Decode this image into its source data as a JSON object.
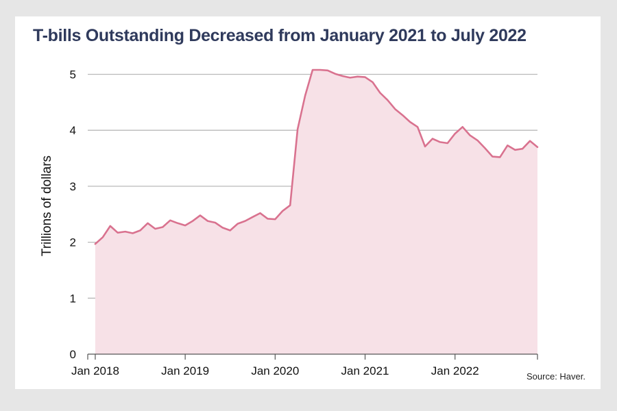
{
  "chart_data": {
    "type": "area",
    "title": "T-bills Outstanding Decreased from January 2021 to July 2022",
    "ylabel": "Trillions of dollars",
    "xlabel": "",
    "source": "Source: Haver.",
    "ylim": [
      0,
      5.3
    ],
    "xlim": [
      "2017-12",
      "2022-12"
    ],
    "yticks": [
      0,
      1,
      2,
      3,
      4,
      5
    ],
    "xticks": [
      {
        "date": "2018-01",
        "label": "Jan 2018"
      },
      {
        "date": "2019-01",
        "label": "Jan 2019"
      },
      {
        "date": "2020-01",
        "label": "Jan 2020"
      },
      {
        "date": "2021-01",
        "label": "Jan 2021"
      },
      {
        "date": "2022-01",
        "label": "Jan 2022"
      }
    ],
    "grid": true,
    "line_color": "#d9728f",
    "fill_color": "#f7e1e7",
    "series": [
      {
        "x": [
          "2018-01",
          "2018-02",
          "2018-03",
          "2018-04",
          "2018-05",
          "2018-06",
          "2018-07",
          "2018-08",
          "2018-09",
          "2018-10",
          "2018-11",
          "2018-12",
          "2019-01",
          "2019-02",
          "2019-03",
          "2019-04",
          "2019-05",
          "2019-06",
          "2019-07",
          "2019-08",
          "2019-09",
          "2019-10",
          "2019-11",
          "2019-12",
          "2020-01",
          "2020-02",
          "2020-03",
          "2020-04",
          "2020-05",
          "2020-06",
          "2020-07",
          "2020-08",
          "2020-09",
          "2020-10",
          "2020-11",
          "2020-12",
          "2021-01",
          "2021-02",
          "2021-03",
          "2021-04",
          "2021-05",
          "2021-06",
          "2021-07",
          "2021-08",
          "2021-09",
          "2021-10",
          "2021-11",
          "2021-12",
          "2022-01",
          "2022-02",
          "2022-03",
          "2022-04",
          "2022-05",
          "2022-06",
          "2022-07",
          "2022-08",
          "2022-09",
          "2022-10",
          "2022-11",
          "2022-12"
        ],
        "values": [
          1.97,
          2.09,
          2.29,
          2.17,
          2.19,
          2.16,
          2.21,
          2.34,
          2.24,
          2.27,
          2.39,
          2.34,
          2.3,
          2.38,
          2.48,
          2.38,
          2.35,
          2.26,
          2.21,
          2.33,
          2.38,
          2.45,
          2.52,
          2.42,
          2.41,
          2.56,
          2.66,
          4.02,
          4.62,
          5.08,
          5.08,
          5.07,
          5.01,
          4.97,
          4.94,
          4.96,
          4.95,
          4.86,
          4.67,
          4.54,
          4.38,
          4.27,
          4.15,
          4.06,
          3.71,
          3.85,
          3.79,
          3.77,
          3.94,
          4.06,
          3.91,
          3.82,
          3.68,
          3.53,
          3.52,
          3.73,
          3.65,
          3.67,
          3.81,
          3.7
        ]
      }
    ]
  }
}
